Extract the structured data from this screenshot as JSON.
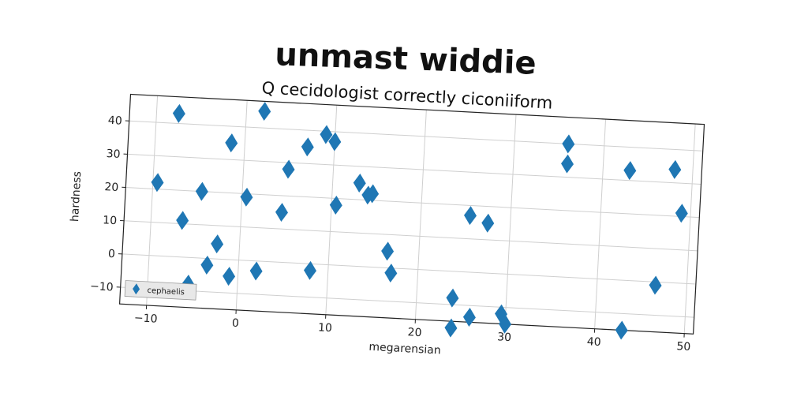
{
  "chart_data": {
    "type": "scatter",
    "suptitle": "unmast widdie",
    "title": "Q cecidologist correctly ciconiiform",
    "xlabel": "megarensian",
    "ylabel": "hardness",
    "xlim": [
      -13,
      51
    ],
    "ylim": [
      -15,
      48
    ],
    "xticks": [
      -10,
      0,
      10,
      20,
      30,
      40,
      50
    ],
    "yticks": [
      -10,
      0,
      10,
      20,
      30,
      40
    ],
    "grid": true,
    "legend_position": "lower-left",
    "series": [
      {
        "name": "cephaelis",
        "marker": "diamond",
        "color": "#1f77b4",
        "points": [
          [
            -9.5,
            22
          ],
          [
            -7.5,
            43
          ],
          [
            -6.5,
            11
          ],
          [
            -5.5,
            -8
          ],
          [
            -4.5,
            20
          ],
          [
            -3.5,
            -2
          ],
          [
            -2.5,
            4.5
          ],
          [
            -1.5,
            35
          ],
          [
            -1,
            -5
          ],
          [
            0.5,
            19
          ],
          [
            2,
            45
          ],
          [
            2,
            -3
          ],
          [
            4.5,
            15
          ],
          [
            5,
            28
          ],
          [
            7,
            35
          ],
          [
            8,
            -2
          ],
          [
            9,
            39
          ],
          [
            10,
            37
          ],
          [
            10.5,
            18
          ],
          [
            13,
            25
          ],
          [
            14,
            21.5
          ],
          [
            14.5,
            22
          ],
          [
            16.5,
            5
          ],
          [
            17,
            -1.5
          ],
          [
            24,
            -8
          ],
          [
            24,
            -17
          ],
          [
            25.5,
            17
          ],
          [
            26,
            -13.5
          ],
          [
            27.5,
            15
          ],
          [
            29.5,
            -12
          ],
          [
            30,
            -15
          ],
          [
            36,
            40
          ],
          [
            36,
            34
          ],
          [
            43,
            33
          ],
          [
            43,
            -15
          ],
          [
            46.5,
            -1
          ],
          [
            48,
            34
          ],
          [
            49,
            21
          ]
        ]
      }
    ]
  }
}
